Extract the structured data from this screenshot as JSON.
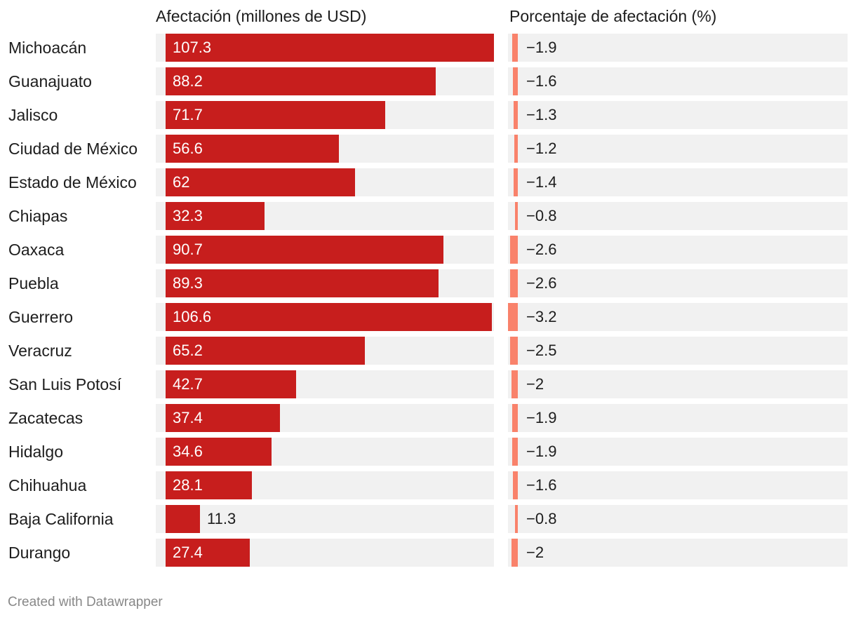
{
  "chart_data": {
    "type": "table",
    "column_titles": [
      "Afectación (millones de USD)",
      "Porcentaje de afectación (%)"
    ],
    "categories": [
      "Michoacán",
      "Guanajuato",
      "Jalisco",
      "Ciudad de México",
      "Estado de México",
      "Chiapas",
      "Oaxaca",
      "Puebla",
      "Guerrero",
      "Veracruz",
      "San Luis Potosí",
      "Zacatecas",
      "Hidalgo",
      "Chihuahua",
      "Baja California",
      "Durango"
    ],
    "series": [
      {
        "name": "Afectación (millones de USD)",
        "color": "#c71e1d",
        "xlim": [
          0,
          107.3
        ],
        "values": [
          107.3,
          88.2,
          71.7,
          56.6,
          62,
          32.3,
          90.7,
          89.3,
          106.6,
          65.2,
          42.7,
          37.4,
          34.6,
          28.1,
          11.3,
          27.4
        ],
        "labels": [
          "107.3",
          "88.2",
          "71.7",
          "56.6",
          "62",
          "32.3",
          "90.7",
          "89.3",
          "106.6",
          "65.2",
          "42.7",
          "37.4",
          "34.6",
          "28.1",
          "11.3",
          "27.4"
        ]
      },
      {
        "name": "Porcentaje de afectación (%)",
        "color": "#f9826b",
        "xlim": [
          -3.2,
          0
        ],
        "values": [
          -1.9,
          -1.6,
          -1.3,
          -1.2,
          -1.4,
          -0.8,
          -2.6,
          -2.6,
          -3.2,
          -2.5,
          -2,
          -1.9,
          -1.9,
          -1.6,
          -0.8,
          -2
        ],
        "labels": [
          "−1.9",
          "−1.6",
          "−1.3",
          "−1.2",
          "−1.4",
          "−0.8",
          "−2.6",
          "−2.6",
          "−3.2",
          "−2.5",
          "−2",
          "−1.9",
          "−1.9",
          "−1.6",
          "−0.8",
          "−2"
        ]
      }
    ]
  },
  "footer": {
    "text": "Created with Datawrapper"
  }
}
